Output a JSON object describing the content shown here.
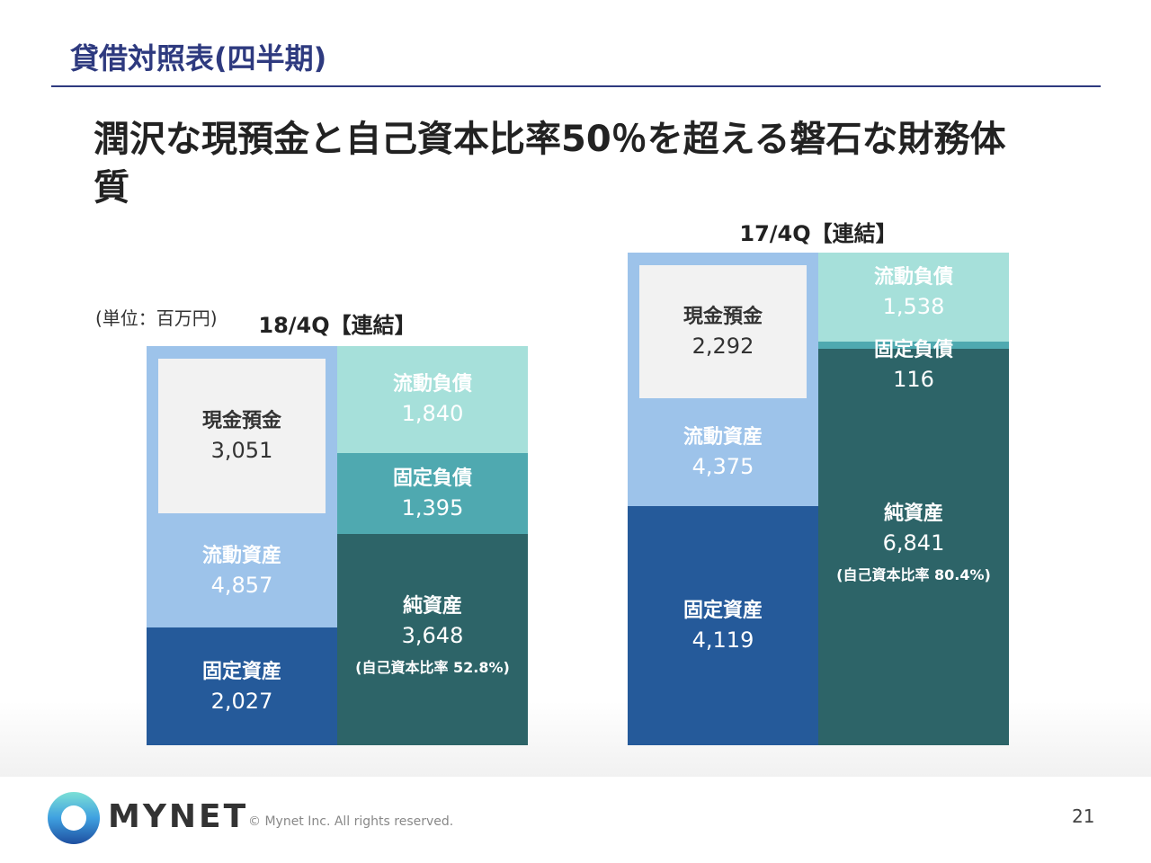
{
  "header": {
    "section_title": "貸借対照表(四半期)",
    "headline": "潤沢な現預金と自己資本比率50％を超える磐石な財務体質",
    "unit_note": "(単位：百万円)"
  },
  "colors": {
    "current_assets": "#9DC3EA",
    "cash": "#F2F2F2",
    "fixed_assets": "#255A9A",
    "current_liabilities": "#A6E0DA",
    "fixed_liabilities": "#4FA9B0",
    "net_assets": "#2D6468",
    "title": "#2E3A7F"
  },
  "chart_data": [
    {
      "type": "stacked-box",
      "title": "18/4Q【連結】",
      "assets": [
        {
          "name": "流動資産",
          "value": 4857,
          "label": "4,857",
          "cash": {
            "name": "現金預金",
            "value": 3051,
            "label": "3,051"
          }
        },
        {
          "name": "固定資産",
          "value": 2027,
          "label": "2,027"
        }
      ],
      "liabilities": [
        {
          "name": "流動負債",
          "value": 1840,
          "label": "1,840"
        },
        {
          "name": "固定負債",
          "value": 1395,
          "label": "1,395"
        },
        {
          "name": "純資産",
          "value": 3648,
          "label": "3,648",
          "ratio": "(自己資本比率 52.8%)"
        }
      ]
    },
    {
      "type": "stacked-box",
      "title": "17/4Q【連結】",
      "assets": [
        {
          "name": "流動資産",
          "value": 4375,
          "label": "4,375",
          "cash": {
            "name": "現金預金",
            "value": 2292,
            "label": "2,292"
          }
        },
        {
          "name": "固定資産",
          "value": 4119,
          "label": "4,119"
        }
      ],
      "liabilities": [
        {
          "name": "流動負債",
          "value": 1538,
          "label": "1,538"
        },
        {
          "name": "固定負債",
          "value": 116,
          "label": "116"
        },
        {
          "name": "純資産",
          "value": 6841,
          "label": "6,841",
          "ratio": "(自己資本比率 80.4%)"
        }
      ]
    }
  ],
  "footer": {
    "brand": "MYNET",
    "copyright": "© Mynet Inc. All rights reserved.",
    "page_number": "21"
  }
}
